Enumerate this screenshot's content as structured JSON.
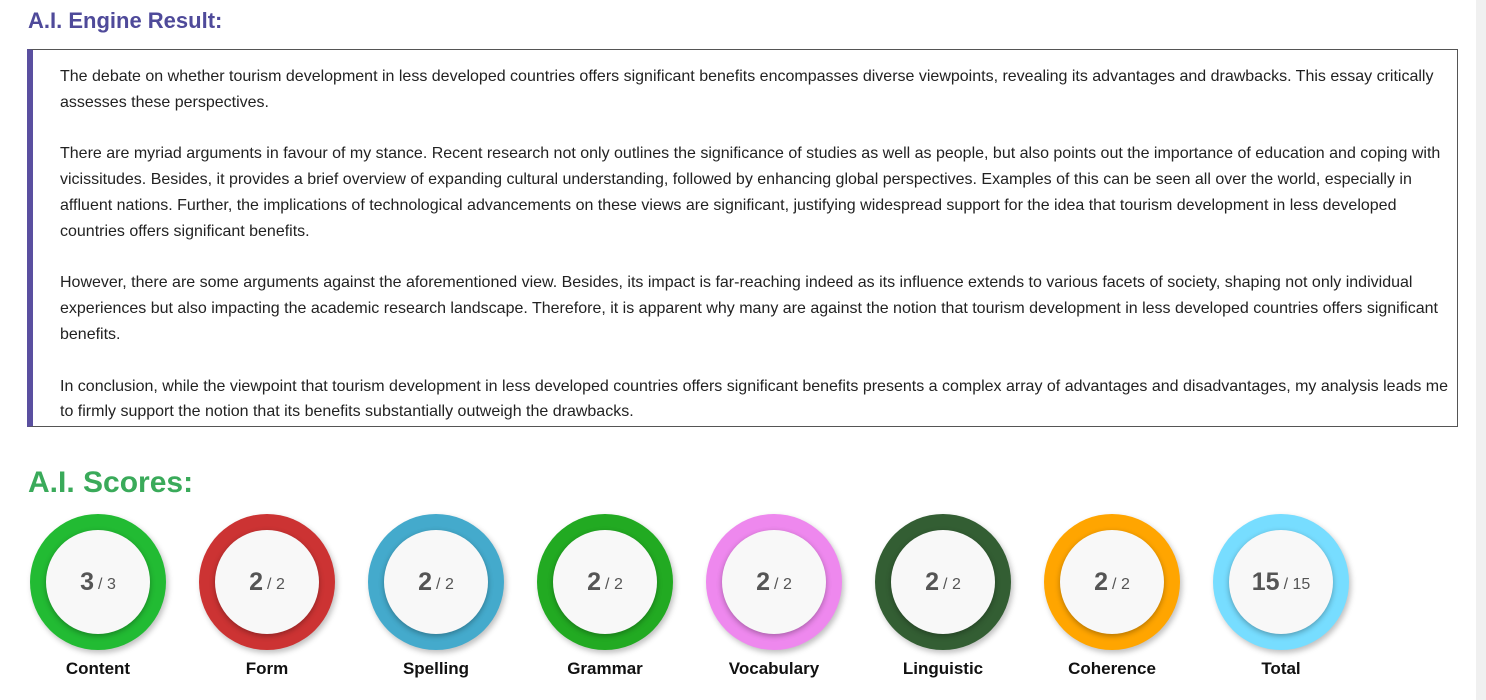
{
  "result": {
    "title": "A.I. Engine Result:",
    "paragraphs": [
      "The debate on whether tourism development in less developed countries offers significant benefits encompasses diverse viewpoints, revealing its advantages and drawbacks. This essay critically assesses these perspectives.",
      "There are myriad arguments in favour of my stance. Recent research not only outlines the significance of studies as well as people, but also points out the importance of education and coping with vicissitudes. Besides, it provides a brief overview of expanding cultural understanding, followed by enhancing global perspectives. Examples of this can be seen all over the world, especially in affluent nations. Further, the implications of technological advancements on these views are significant, justifying widespread support for the idea that tourism development in less developed countries offers significant benefits.",
      "However, there are some arguments against the aforementioned view. Besides, its impact is far-reaching indeed as its influence extends to various facets of society, shaping not only individual experiences but also impacting the academic research landscape. Therefore, it is apparent why many are against the notion that tourism development in less developed countries offers significant benefits.",
      "In conclusion, while the viewpoint that tourism development in less developed countries offers significant benefits presents a complex array of advantages and disadvantages, my analysis leads me to firmly support the notion that its benefits substantially outweigh the drawbacks."
    ]
  },
  "scores": {
    "title": "A.I. Scores:",
    "items": [
      {
        "label": "Content",
        "score": 3,
        "out_of": "/ 3",
        "color": "#22bb33"
      },
      {
        "label": "Form",
        "score": 2,
        "out_of": "/ 2",
        "color": "#cc3333"
      },
      {
        "label": "Spelling",
        "score": 2,
        "out_of": "/ 2",
        "color": "#44aacc"
      },
      {
        "label": "Grammar",
        "score": 2,
        "out_of": "/ 2",
        "color": "#22aa22"
      },
      {
        "label": "Vocabulary",
        "score": 2,
        "out_of": "/ 2",
        "color": "#ee88ee"
      },
      {
        "label": "Linguistic",
        "score": 2,
        "out_of": "/ 2",
        "color": "#335e33"
      },
      {
        "label": "Coherence",
        "score": 2,
        "out_of": "/ 2",
        "color": "#ffa500"
      },
      {
        "label": "Total",
        "score": 15,
        "out_of": "/ 15",
        "color": "#77ddff"
      }
    ]
  }
}
